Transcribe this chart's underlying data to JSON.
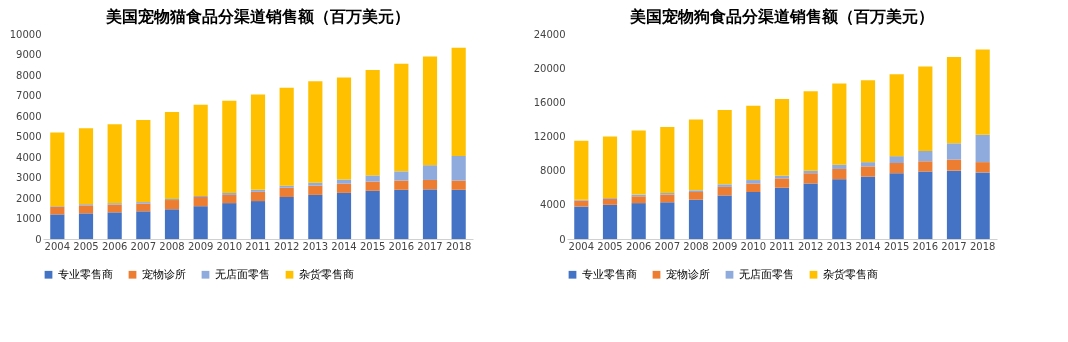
{
  "chart_data": [
    {
      "type": "bar",
      "title": "美国宠物猫食品分渠道销售额（百万美元）",
      "stacked": true,
      "legend": "bottom",
      "grid": false,
      "categories": [
        "2004",
        "2005",
        "2006",
        "2007",
        "2008",
        "2009",
        "2010",
        "2011",
        "2012",
        "2013",
        "2014",
        "2015",
        "2016",
        "2017",
        "2018"
      ],
      "ylim": [
        0,
        10000
      ],
      "yticks": [
        0,
        1000,
        2000,
        3000,
        4000,
        5000,
        6000,
        7000,
        8000,
        9000,
        10000
      ],
      "series": [
        {
          "name": "专业零售商",
          "color": "#4472c4",
          "values": [
            1200,
            1250,
            1300,
            1350,
            1450,
            1600,
            1750,
            1850,
            2050,
            2150,
            2250,
            2350,
            2400,
            2420,
            2400
          ]
        },
        {
          "name": "宠物诊所",
          "color": "#ed7d31",
          "values": [
            360,
            390,
            380,
            380,
            450,
            450,
            400,
            450,
            450,
            450,
            450,
            450,
            450,
            460,
            450
          ]
        },
        {
          "name": "无店面零售",
          "color": "#8faadc",
          "values": [
            40,
            60,
            70,
            70,
            50,
            50,
            100,
            100,
            100,
            150,
            200,
            300,
            450,
            720,
            1200
          ]
        },
        {
          "name": "杂货零售商",
          "color": "#ffc000",
          "values": [
            3600,
            3700,
            3850,
            4000,
            4250,
            4450,
            4500,
            4650,
            4780,
            4950,
            4980,
            5150,
            5250,
            5300,
            5280
          ]
        }
      ]
    },
    {
      "type": "bar",
      "title": "美国宠物狗食品分渠道销售额（百万美元）",
      "stacked": true,
      "legend": "bottom",
      "grid": false,
      "categories": [
        "2004",
        "2005",
        "2006",
        "2007",
        "2008",
        "2009",
        "2010",
        "2011",
        "2012",
        "2013",
        "2014",
        "2015",
        "2016",
        "2017",
        "2018"
      ],
      "ylim": [
        0,
        24000
      ],
      "yticks": [
        0,
        4000,
        8000,
        12000,
        16000,
        20000,
        24000
      ],
      "series": [
        {
          "name": "专业零售商",
          "color": "#4472c4",
          "values": [
            3800,
            4000,
            4200,
            4300,
            4600,
            5100,
            5500,
            6000,
            6500,
            7000,
            7300,
            7700,
            7900,
            8000,
            7800
          ]
        },
        {
          "name": "宠物诊所",
          "color": "#ed7d31",
          "values": [
            700,
            700,
            800,
            900,
            900,
            1000,
            1000,
            1100,
            1200,
            1200,
            1200,
            1200,
            1200,
            1300,
            1200
          ]
        },
        {
          "name": "无店面零售",
          "color": "#8faadc",
          "values": [
            100,
            100,
            200,
            200,
            200,
            300,
            400,
            300,
            300,
            500,
            500,
            800,
            1200,
            1900,
            3200
          ]
        },
        {
          "name": "杂货零售商",
          "color": "#ffc000",
          "values": [
            6900,
            7200,
            7500,
            7700,
            8300,
            8700,
            8700,
            9000,
            9300,
            9500,
            9600,
            9600,
            9900,
            10100,
            10000
          ]
        }
      ]
    }
  ]
}
